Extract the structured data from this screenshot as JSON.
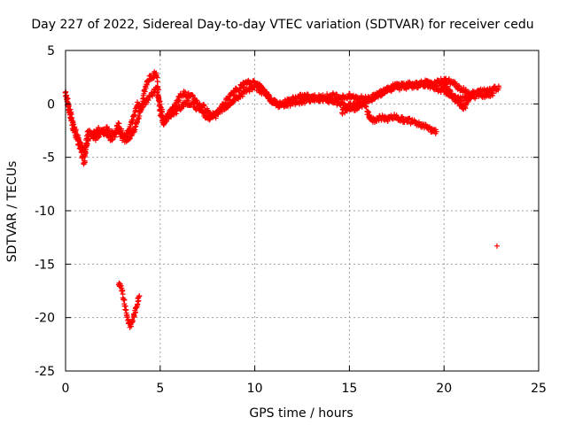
{
  "chart_data": {
    "type": "scatter",
    "title": "Day 227 of 2022, Sidereal Day-to-day VTEC variation (SDTVAR) for receiver cedu",
    "xlabel": "GPS time / hours",
    "ylabel": "SDTVAR / TECUs",
    "xlim": [
      0,
      25
    ],
    "ylim": [
      -25,
      5
    ],
    "xticks": [
      "0",
      "5",
      "10",
      "15",
      "20",
      "25"
    ],
    "yticks": [
      "5",
      "0",
      "-5",
      "-10",
      "-15",
      "-20",
      "-25"
    ],
    "grid": true,
    "marker": "plus",
    "series_color": "#ff0000",
    "series": [
      {
        "name": "main-trace",
        "x": [
          0.0,
          0.1,
          0.2,
          0.3,
          0.4,
          0.5,
          0.6,
          0.7,
          0.8,
          0.9,
          1.0,
          1.1,
          1.2,
          1.4,
          1.6,
          1.8,
          2.0,
          2.2,
          2.4,
          2.6,
          2.8,
          3.0,
          3.2,
          3.4,
          3.6,
          3.8,
          4.0,
          4.2,
          4.4,
          4.6,
          4.8,
          5.0,
          5.2,
          5.4,
          5.6,
          5.8,
          6.0,
          6.2,
          6.5,
          6.8,
          7.0,
          7.3,
          7.6,
          7.9,
          8.2,
          8.5,
          8.8,
          9.1,
          9.4,
          9.7,
          10.0,
          10.3,
          10.6,
          10.9,
          11.2,
          11.5,
          11.8,
          12.2,
          12.6,
          13.0,
          13.4,
          13.8,
          14.2,
          14.6,
          15.0,
          15.4,
          15.8,
          16.2,
          16.6,
          17.0,
          17.4,
          17.8,
          18.2,
          18.6,
          19.0,
          19.4,
          19.8,
          20.2,
          20.6,
          21.0,
          21.4,
          21.8,
          22.2,
          22.6,
          22.9
        ],
        "y": [
          1.0,
          0.0,
          -0.8,
          -1.5,
          -2.3,
          -2.8,
          -3.3,
          -3.8,
          -4.3,
          -5.0,
          -5.5,
          -3.5,
          -2.5,
          -3.0,
          -2.6,
          -2.4,
          -2.8,
          -2.2,
          -2.7,
          -3.0,
          -2.5,
          -3.2,
          -2.8,
          -2.2,
          -1.2,
          0.0,
          -0.5,
          1.5,
          2.3,
          2.6,
          2.9,
          -1.0,
          -1.8,
          -1.0,
          -0.6,
          -0.2,
          0.6,
          1.0,
          0.8,
          0.5,
          0.0,
          -0.3,
          -0.8,
          -1.2,
          -0.4,
          0.3,
          0.9,
          1.4,
          1.8,
          2.0,
          2.0,
          1.6,
          1.0,
          0.4,
          0.0,
          0.1,
          0.3,
          0.6,
          0.7,
          0.7,
          0.6,
          0.7,
          0.8,
          0.6,
          0.7,
          0.6,
          0.5,
          0.6,
          0.9,
          1.4,
          1.7,
          1.8,
          1.8,
          1.9,
          2.0,
          1.8,
          2.1,
          2.2,
          1.8,
          1.3,
          0.9,
          1.1,
          1.3,
          1.4,
          1.5
        ]
      },
      {
        "name": "secondary-trace",
        "x": [
          0.0,
          0.2,
          0.4,
          0.6,
          0.8,
          1.0,
          1.3,
          1.6,
          2.0,
          2.4,
          2.8,
          3.2,
          3.6,
          4.0,
          4.4,
          4.8,
          5.2,
          5.8,
          6.4,
          7.0,
          7.6,
          8.2,
          8.8,
          9.4,
          10.0,
          10.6,
          11.2,
          11.8,
          12.4,
          13.0,
          13.6,
          14.2,
          14.8,
          15.4,
          16.0,
          16.6,
          17.2,
          17.8,
          18.4,
          19.0,
          19.6,
          20.2,
          20.8,
          21.4,
          22.0,
          22.6
        ],
        "y": [
          1.2,
          -0.4,
          -1.8,
          -3.0,
          -3.8,
          -4.5,
          -2.8,
          -3.2,
          -2.4,
          -3.4,
          -2.0,
          -3.6,
          -2.6,
          -0.4,
          0.6,
          1.4,
          -1.6,
          -0.8,
          0.2,
          -0.4,
          -1.4,
          -0.6,
          0.2,
          1.0,
          1.6,
          0.8,
          -0.2,
          0.0,
          0.2,
          0.4,
          0.5,
          0.2,
          -0.2,
          0.0,
          0.3,
          1.0,
          1.4,
          1.6,
          1.7,
          1.8,
          1.5,
          1.0,
          0.4,
          0.7,
          0.8,
          1.0
        ]
      },
      {
        "name": "branch-lower",
        "x": [
          14.6,
          14.9,
          15.2,
          15.5,
          15.8,
          16.1,
          16.4,
          16.7,
          17.0,
          17.3,
          17.6,
          17.9,
          18.2,
          18.5,
          18.8,
          19.1,
          19.4,
          19.6
        ],
        "y": [
          -0.8,
          -0.4,
          -0.5,
          -0.3,
          0.0,
          -1.4,
          -1.5,
          -1.3,
          -1.4,
          -1.2,
          -1.3,
          -1.5,
          -1.6,
          -1.8,
          -2.0,
          -2.2,
          -2.5,
          -2.6
        ]
      },
      {
        "name": "branch-upper",
        "x": [
          19.9,
          20.1,
          20.3,
          20.5,
          20.7,
          20.9,
          21.1,
          21.3
        ],
        "y": [
          2.0,
          1.6,
          1.1,
          0.6,
          0.2,
          -0.2,
          -0.3,
          0.5
        ]
      },
      {
        "name": "dip-segment",
        "x": [
          2.8,
          2.9,
          3.0,
          3.1,
          3.2,
          3.3,
          3.4,
          3.5,
          3.6,
          3.7,
          3.8,
          3.9
        ],
        "y": [
          -16.8,
          -16.9,
          -17.5,
          -18.5,
          -19.5,
          -20.3,
          -20.7,
          -20.6,
          -20.0,
          -19.2,
          -18.6,
          -18.0
        ]
      },
      {
        "name": "isolated-point",
        "x": [
          22.8
        ],
        "y": [
          -13.3
        ]
      }
    ]
  }
}
